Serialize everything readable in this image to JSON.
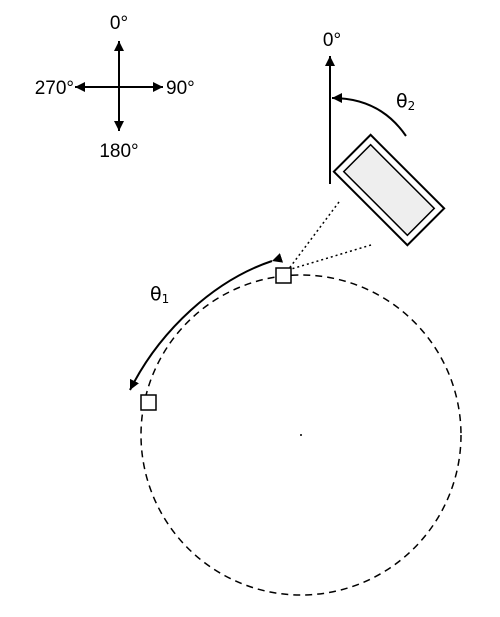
{
  "compass": {
    "north_label": "0°",
    "east_label": "90°",
    "south_label": "180°",
    "west_label": "270°"
  },
  "reference": {
    "up_label": "0°"
  },
  "angles": {
    "theta1_symbol": "θ",
    "theta1_index": "1",
    "theta2_symbol": "θ",
    "theta2_index": "2"
  },
  "colors": {
    "stroke": "#000000",
    "device_fill": "#eeeeee",
    "background": "#ffffff"
  },
  "icons": {
    "device": "camera-rectangle-icon",
    "marker": "square-marker-icon"
  }
}
